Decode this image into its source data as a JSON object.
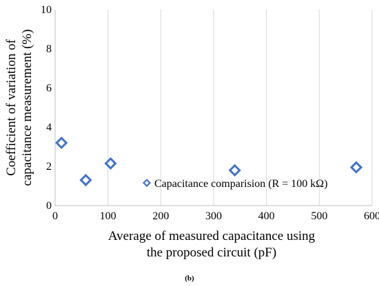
{
  "chart_data": {
    "type": "scatter",
    "xlabel_lines": [
      "Average of measured capacitance using",
      "the proposed circuit (pF)"
    ],
    "ylabel_lines": [
      "Coefficient of variation of",
      "capacitance measurement (%)"
    ],
    "xlim": [
      0,
      600
    ],
    "ylim": [
      0,
      10
    ],
    "x_ticks": [
      0,
      100,
      200,
      300,
      400,
      500,
      600
    ],
    "y_ticks": [
      0,
      2,
      4,
      6,
      8,
      10
    ],
    "grid": "vertical",
    "legend_position": "center-right",
    "marker": "diamond-open",
    "series": [
      {
        "name": "Capacitance comparision (R = 100 kΩ)",
        "color": "#4472C4",
        "points": [
          {
            "x": 12,
            "y": 3.2
          },
          {
            "x": 58,
            "y": 1.3
          },
          {
            "x": 105,
            "y": 2.15
          },
          {
            "x": 340,
            "y": 1.8
          },
          {
            "x": 570,
            "y": 1.95
          }
        ]
      }
    ]
  },
  "caption": "(b)"
}
